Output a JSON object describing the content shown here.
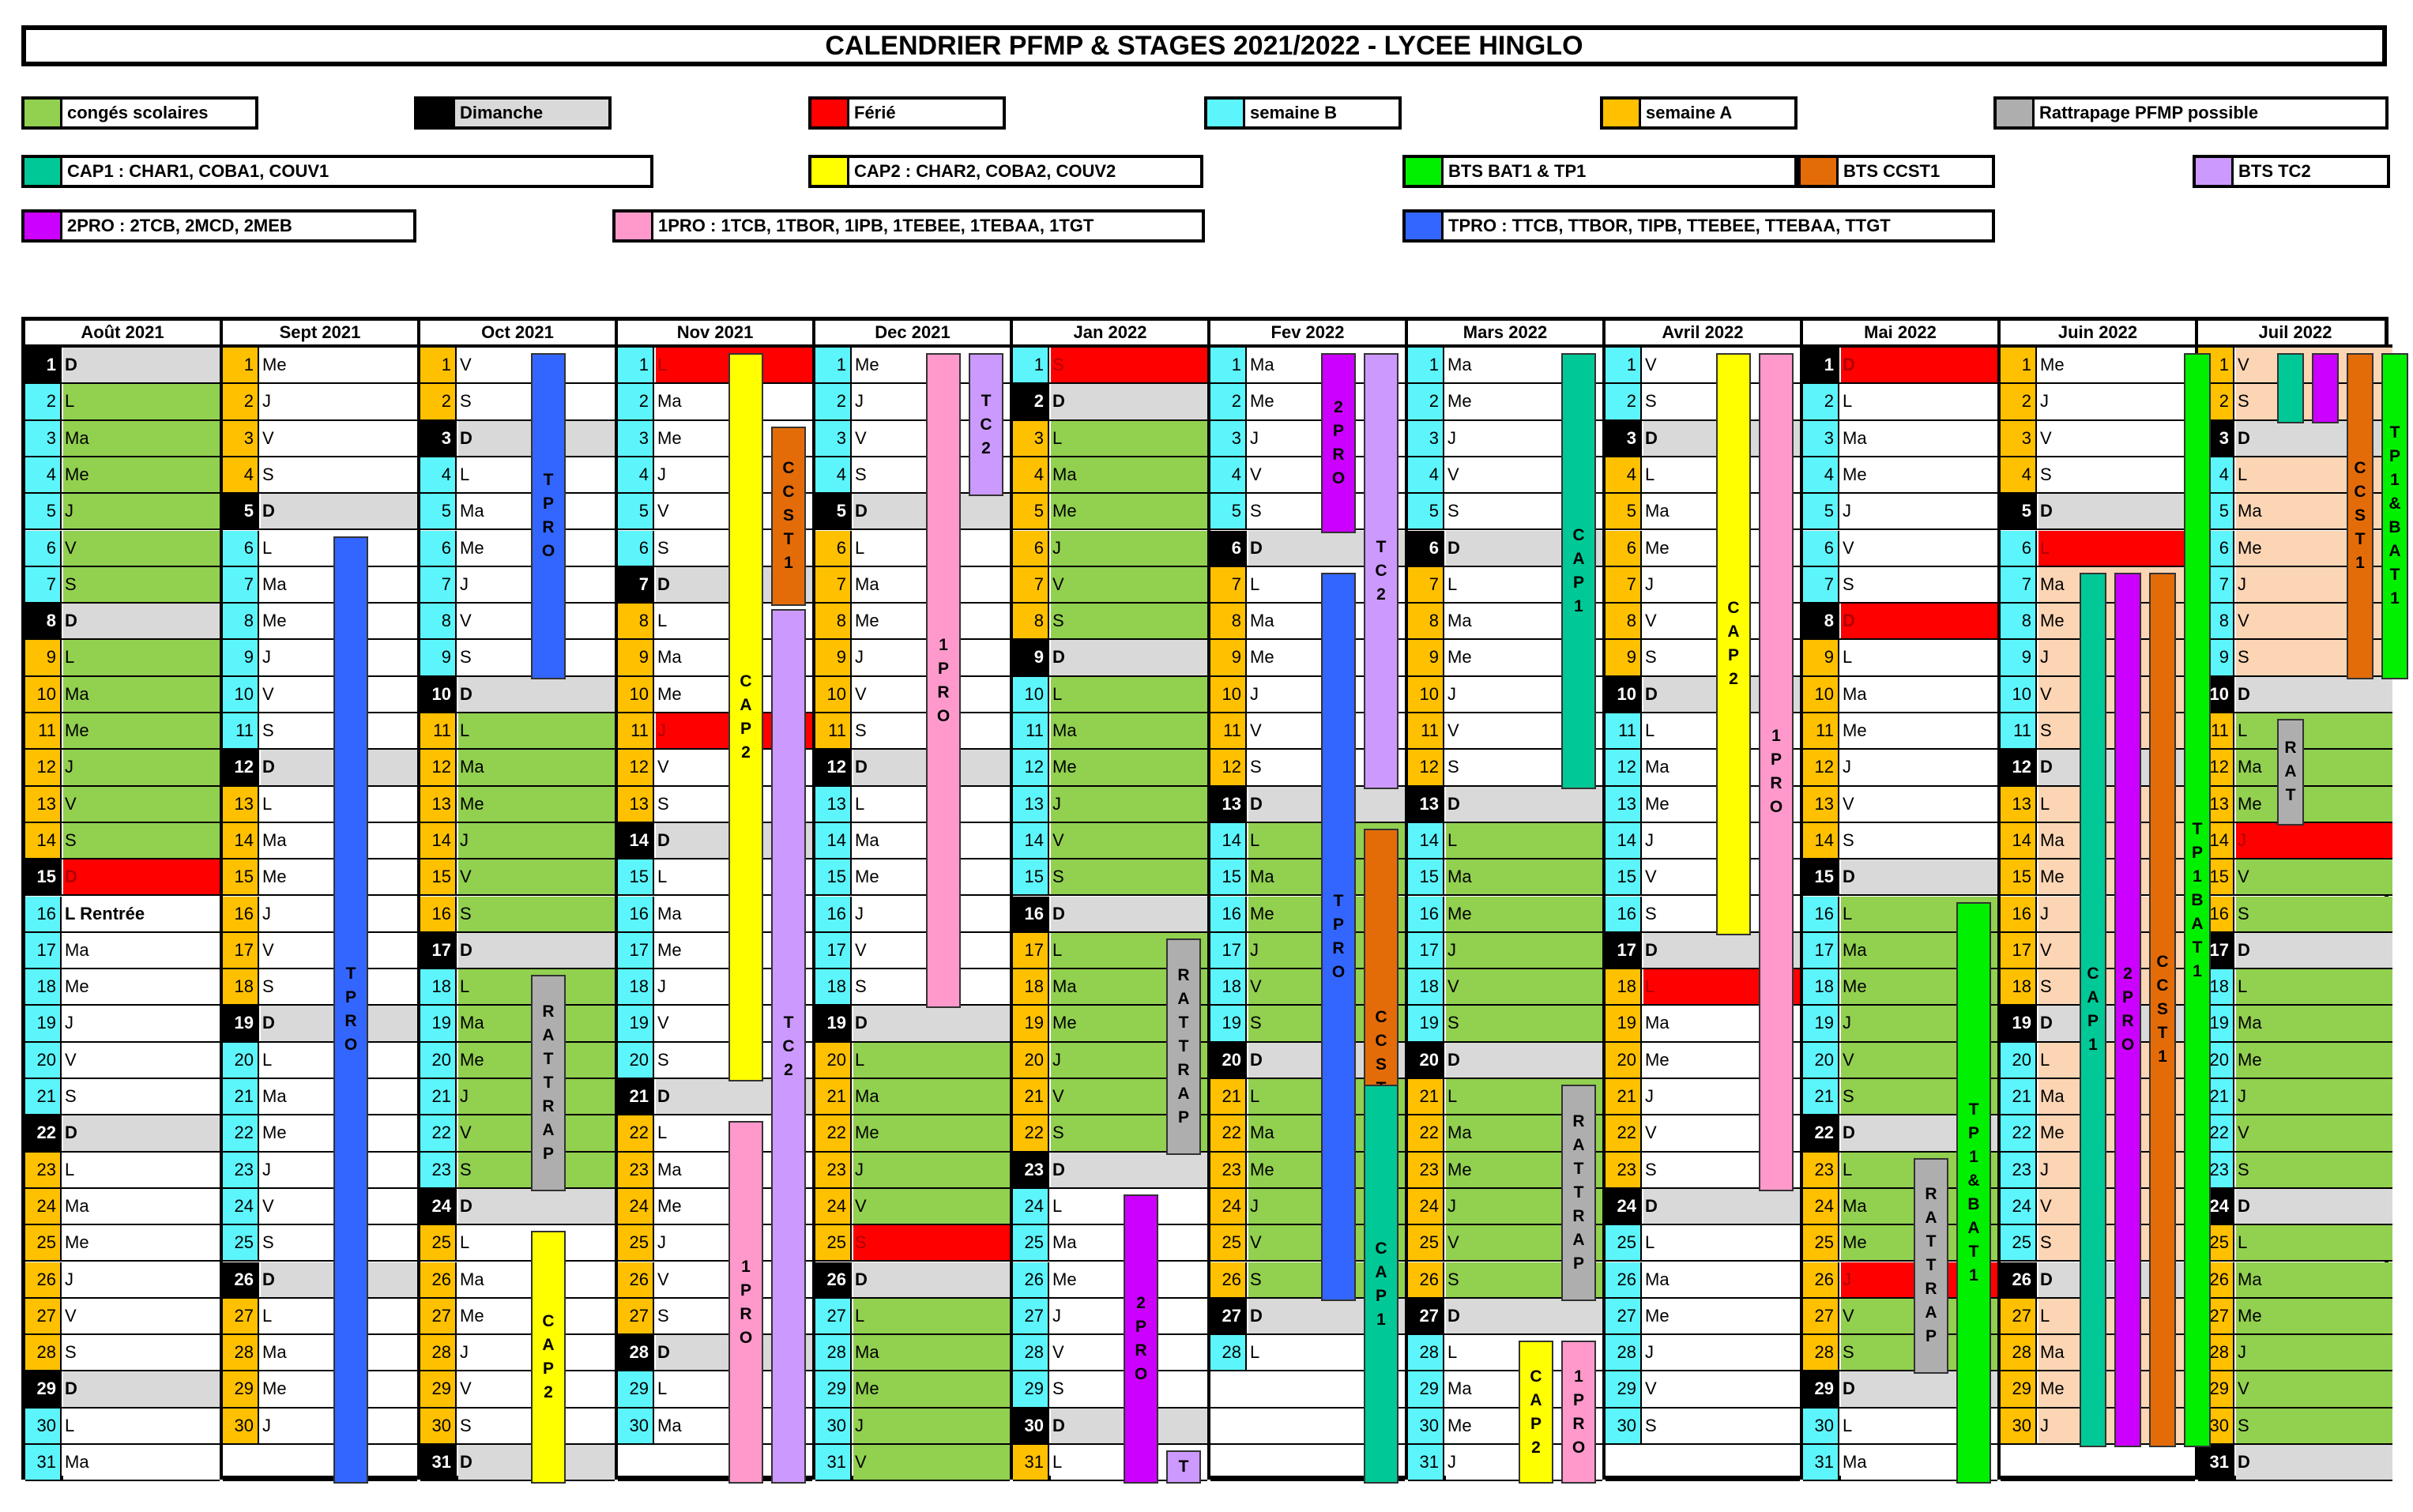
{
  "title": "CALENDRIER PFMP & STAGES 2021/2022 - LYCEE HINGLO",
  "colors": {
    "green": "#92d050",
    "black": "#000000",
    "grey": "#d9d9d9",
    "red": "#ff0000",
    "cyan": "#5cf5fb",
    "orange": "#ffc000",
    "rattrapage": "#aeaeae",
    "cap1": "#00c896",
    "cap2": "#ffff00",
    "bts_bat1": "#00f000",
    "ccst1": "#e36c09",
    "tc2": "#cc99ff",
    "pro2": "#cc00ff",
    "pro1": "#ff99cc",
    "tpro": "#3366ff",
    "peach": "#fcd5b4",
    "white": "#ffffff"
  },
  "legend": [
    {
      "label": "congés scolaires",
      "color": "green"
    },
    {
      "label": "Dimanche",
      "color": "black"
    },
    {
      "label": "Férié",
      "color": "red"
    },
    {
      "label": "semaine B",
      "color": "cyan"
    },
    {
      "label": "semaine A",
      "color": "orange"
    },
    {
      "label": "Rattrapage PFMP possible",
      "color": "rattrapage"
    },
    {
      "label": "CAP1 : CHAR1, COBA1, COUV1",
      "color": "cap1"
    },
    {
      "label": "CAP2 : CHAR2, COBA2, COUV2",
      "color": "cap2"
    },
    {
      "label": "BTS BAT1 & TP1",
      "color": "bts_bat1"
    },
    {
      "label": "BTS CCST1",
      "color": "ccst1"
    },
    {
      "label": "BTS TC2",
      "color": "tc2"
    },
    {
      "label": "2PRO : 2TCB, 2MCD, 2MEB",
      "color": "pro2"
    },
    {
      "label": "1PRO : 1TCB, 1TBOR, 1IPB, 1TEBEE, 1TEBAA, 1TGT",
      "color": "pro1"
    },
    {
      "label": "TPRO : TTCB, TTBOR, TIPB, TTEBEE, TTEBAA, TTGT",
      "color": "tpro"
    }
  ],
  "months": [
    {
      "name": "Août 2021",
      "first_weekday": 0,
      "days": 31,
      "week_start": "A",
      "holiday_days": [
        2,
        3,
        4,
        5,
        6,
        7,
        9,
        10,
        11,
        12,
        13,
        14
      ],
      "ferie": [
        15
      ],
      "white_days": [
        16
      ],
      "notes": {
        "16": "L Rentrée"
      }
    },
    {
      "name": "Sept 2021",
      "first_weekday": 3,
      "days": 30,
      "week_start": "A",
      "holiday_days": [],
      "ferie": []
    },
    {
      "name": "Oct 2021",
      "first_weekday": 5,
      "days": 31,
      "week_start": "A",
      "holiday_days": [
        11,
        12,
        13,
        14,
        15,
        16,
        18,
        19,
        20,
        21,
        22,
        23
      ],
      "ferie": []
    },
    {
      "name": "Nov 2021",
      "first_weekday": 1,
      "days": 30,
      "week_start": "B",
      "holiday_days": [],
      "ferie": [
        1,
        11
      ]
    },
    {
      "name": "Dec 2021",
      "first_weekday": 3,
      "days": 31,
      "week_start": "B",
      "holiday_days": [
        20,
        21,
        22,
        23,
        24,
        25,
        27,
        28,
        29,
        30,
        31
      ],
      "ferie": [
        25
      ]
    },
    {
      "name": "Jan 2022",
      "first_weekday": 6,
      "days": 31,
      "week_start": "B",
      "holiday_days": [
        1,
        3,
        4,
        5,
        6,
        7,
        8,
        10,
        11,
        12,
        13,
        14,
        15,
        17,
        18,
        19,
        20,
        21,
        22
      ],
      "ferie": [
        1
      ]
    },
    {
      "name": "Fev 2022",
      "first_weekday": 2,
      "days": 28,
      "week_start": "B",
      "holiday_days": [
        14,
        15,
        16,
        17,
        18,
        19,
        21,
        22,
        23,
        24,
        25,
        26
      ],
      "ferie": []
    },
    {
      "name": "Mars 2022",
      "first_weekday": 2,
      "days": 31,
      "week_start": "B",
      "holiday_days": [
        14,
        15,
        16,
        17,
        18,
        19,
        21,
        22,
        23,
        24,
        25,
        26
      ],
      "ferie": []
    },
    {
      "name": "Avril 2022",
      "first_weekday": 5,
      "days": 30,
      "week_start": "B",
      "holiday_days": [],
      "ferie": [
        18
      ]
    },
    {
      "name": "Mai 2022",
      "first_weekday": 0,
      "days": 31,
      "week_start": "A",
      "holiday_days": [
        16,
        17,
        18,
        19,
        20,
        21,
        23,
        24,
        25,
        26,
        27,
        28
      ],
      "ferie": [
        1,
        8,
        26
      ]
    },
    {
      "name": "Juin 2022",
      "first_weekday": 3,
      "days": 30,
      "week_start": "A",
      "holiday_days": [],
      "ferie": [
        6
      ]
    },
    {
      "name": "Juil 2022",
      "first_weekday": 5,
      "days": 31,
      "week_start": "A",
      "holiday_days": [
        11,
        12,
        13,
        15,
        16,
        18,
        19,
        20,
        21,
        22,
        23,
        25,
        26,
        27,
        28,
        29,
        30
      ],
      "ferie": [
        14
      ]
    }
  ],
  "weekday_abbr": [
    "D",
    "L",
    "Ma",
    "Me",
    "J",
    "V",
    "S"
  ],
  "bars": [
    {
      "month": 1,
      "start": 6,
      "end": 31,
      "label": "TPRO",
      "color": "tpro",
      "col": 0
    },
    {
      "month": 2,
      "start": 1,
      "end": 9,
      "label": "TPRO",
      "color": "tpro",
      "col": 0
    },
    {
      "month": 2,
      "start": 18,
      "end": 23,
      "label": "RATTRAP",
      "color": "rattrapage",
      "col": 0
    },
    {
      "month": 2,
      "start": 25,
      "end": 31,
      "label": "CAP2",
      "color": "cap2",
      "col": 0
    },
    {
      "month": 3,
      "start": 1,
      "end": 20,
      "label": "CAP2",
      "color": "cap2",
      "col": 0
    },
    {
      "month": 3,
      "start": 3,
      "end": 7,
      "label": "CCST1",
      "color": "ccst1",
      "col": 1
    },
    {
      "month": 3,
      "start": 8,
      "end": 31,
      "label": "TC2",
      "color": "tc2",
      "col": 1
    },
    {
      "month": 3,
      "start": 22,
      "end": 31,
      "label": "1PRO",
      "color": "pro1",
      "col": 0
    },
    {
      "month": 4,
      "start": 1,
      "end": 18,
      "label": "1PRO",
      "color": "pro1",
      "col": 0
    },
    {
      "month": 4,
      "start": 1,
      "end": 4,
      "label": "TC2",
      "color": "tc2",
      "col": 1
    },
    {
      "month": 5,
      "start": 17,
      "end": 22,
      "label": "RATTRAP",
      "color": "rattrapage",
      "col": 1
    },
    {
      "month": 5,
      "start": 24,
      "end": 31,
      "label": "2PRO",
      "color": "pro2",
      "col": 0
    },
    {
      "month": 5,
      "start": 31,
      "end": 31,
      "label": "T",
      "color": "tc2",
      "col": 1
    },
    {
      "month": 6,
      "start": 1,
      "end": 5,
      "label": "2PRO",
      "color": "pro2",
      "col": 0
    },
    {
      "month": 6,
      "start": 1,
      "end": 12,
      "label": "TC2",
      "color": "tc2",
      "col": 1
    },
    {
      "month": 6,
      "start": 7,
      "end": 26,
      "label": "TPRO",
      "color": "tpro",
      "col": 0
    },
    {
      "month": 6,
      "start": 14,
      "end": 26,
      "label": "CCST1",
      "color": "ccst1",
      "col": 1
    },
    {
      "month": 6,
      "start": 21,
      "end": 31,
      "label": "CAP1",
      "color": "cap1",
      "col": 1
    },
    {
      "month": 7,
      "start": 1,
      "end": 12,
      "label": "CAP1",
      "color": "cap1",
      "col": 1
    },
    {
      "month": 7,
      "start": 21,
      "end": 26,
      "label": "RATTRAP",
      "color": "rattrapage",
      "col": 1
    },
    {
      "month": 7,
      "start": 28,
      "end": 31,
      "label": "CAP2",
      "color": "cap2",
      "col": 0
    },
    {
      "month": 7,
      "start": 28,
      "end": 31,
      "label": "1PRO",
      "color": "pro1",
      "col": 1
    },
    {
      "month": 8,
      "start": 1,
      "end": 16,
      "label": "CAP2",
      "color": "cap2",
      "col": 0
    },
    {
      "month": 8,
      "start": 1,
      "end": 23,
      "label": "1PRO",
      "color": "pro1",
      "col": 1
    },
    {
      "month": 9,
      "start": 16,
      "end": 31,
      "label": "TP1&BAT1",
      "color": "bts_bat1",
      "col": 1
    },
    {
      "month": 9,
      "start": 23,
      "end": 28,
      "label": "RATTRAP",
      "color": "rattrapage",
      "col": 0
    },
    {
      "month": 10,
      "start": 7,
      "end": 30,
      "label": "CAP1",
      "color": "cap1",
      "col": 0
    },
    {
      "month": 10,
      "start": 7,
      "end": 30,
      "label": "2PRO",
      "color": "pro2",
      "col": 1
    },
    {
      "month": 10,
      "start": 7,
      "end": 30,
      "label": "CCST1",
      "color": "ccst1",
      "col": 2
    },
    {
      "month": 10,
      "start": 1,
      "end": 30,
      "label": "TP1BAT1",
      "color": "bts_bat1",
      "col": 3
    },
    {
      "month": 11,
      "start": 1,
      "end": 2,
      "label": "",
      "color": "cap1",
      "col": 0
    },
    {
      "month": 11,
      "start": 1,
      "end": 2,
      "label": "",
      "color": "pro2",
      "col": 1
    },
    {
      "month": 11,
      "start": 1,
      "end": 9,
      "label": "CCST1",
      "color": "ccst1",
      "col": 2
    },
    {
      "month": 11,
      "start": 1,
      "end": 9,
      "label": "TP1&BAT1",
      "color": "bts_bat1",
      "col": 3
    },
    {
      "month": 11,
      "start": 11,
      "end": 13,
      "label": "RAT",
      "color": "rattrapage",
      "col": 0
    }
  ]
}
